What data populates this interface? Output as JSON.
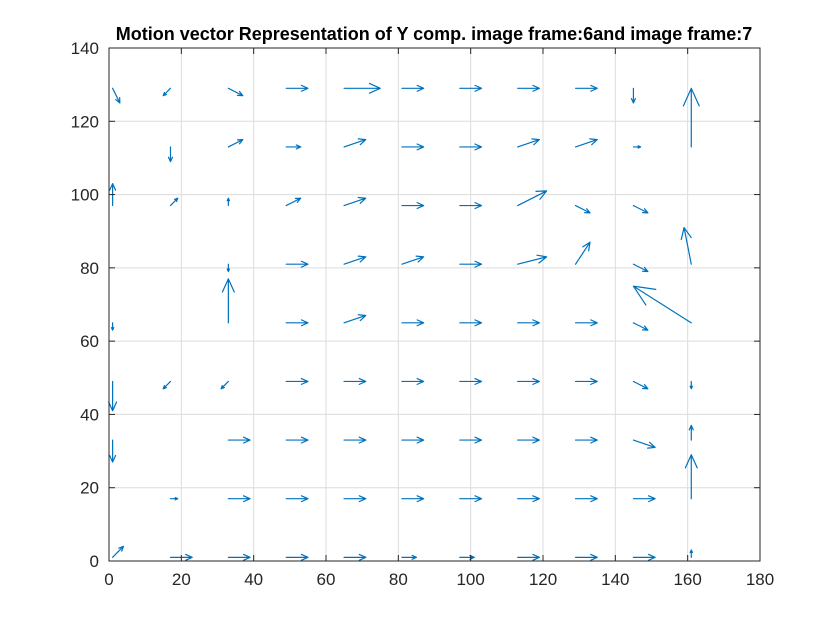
{
  "chart_data": {
    "type": "quiver",
    "title": "Motion vector Representation of Y comp. image frame:6and image frame:7",
    "xlabel": "",
    "ylabel": "",
    "xlim": [
      0,
      180
    ],
    "ylim": [
      0,
      140
    ],
    "xticks": [
      "0",
      "20",
      "40",
      "60",
      "80",
      "100",
      "120",
      "140",
      "160",
      "180"
    ],
    "yticks": [
      "0",
      "20",
      "40",
      "60",
      "80",
      "100",
      "120",
      "140"
    ],
    "grid": true,
    "color": "#0072BD",
    "vectors": [
      {
        "x": 1,
        "y": 1,
        "u": 3,
        "v": 3
      },
      {
        "x": 17,
        "y": 1,
        "u": 6,
        "v": 0
      },
      {
        "x": 33,
        "y": 1,
        "u": 6,
        "v": 0
      },
      {
        "x": 49,
        "y": 1,
        "u": 6,
        "v": 0
      },
      {
        "x": 65,
        "y": 1,
        "u": 6,
        "v": 0
      },
      {
        "x": 81,
        "y": 1,
        "u": 4,
        "v": 0
      },
      {
        "x": 97,
        "y": 1,
        "u": 4,
        "v": 0
      },
      {
        "x": 113,
        "y": 1,
        "u": 6,
        "v": 0
      },
      {
        "x": 129,
        "y": 1,
        "u": 6,
        "v": 0
      },
      {
        "x": 145,
        "y": 1,
        "u": 6,
        "v": 0
      },
      {
        "x": 161,
        "y": 1,
        "u": 0,
        "v": 2
      },
      {
        "x": 17,
        "y": 17,
        "u": 2,
        "v": 0
      },
      {
        "x": 33,
        "y": 17,
        "u": 6,
        "v": 0
      },
      {
        "x": 49,
        "y": 17,
        "u": 6,
        "v": 0
      },
      {
        "x": 65,
        "y": 17,
        "u": 6,
        "v": 0
      },
      {
        "x": 81,
        "y": 17,
        "u": 6,
        "v": 0
      },
      {
        "x": 97,
        "y": 17,
        "u": 6,
        "v": 0
      },
      {
        "x": 113,
        "y": 17,
        "u": 6,
        "v": 0
      },
      {
        "x": 129,
        "y": 17,
        "u": 6,
        "v": 0
      },
      {
        "x": 145,
        "y": 17,
        "u": 6,
        "v": 0
      },
      {
        "x": 161,
        "y": 17,
        "u": 0,
        "v": 12
      },
      {
        "x": 1,
        "y": 33,
        "u": 0,
        "v": -6
      },
      {
        "x": 33,
        "y": 33,
        "u": 6,
        "v": 0
      },
      {
        "x": 49,
        "y": 33,
        "u": 6,
        "v": 0
      },
      {
        "x": 65,
        "y": 33,
        "u": 6,
        "v": 0
      },
      {
        "x": 81,
        "y": 33,
        "u": 6,
        "v": 0
      },
      {
        "x": 97,
        "y": 33,
        "u": 6,
        "v": 0
      },
      {
        "x": 113,
        "y": 33,
        "u": 6,
        "v": 0
      },
      {
        "x": 129,
        "y": 33,
        "u": 6,
        "v": 0
      },
      {
        "x": 145,
        "y": 33,
        "u": 6,
        "v": -2
      },
      {
        "x": 161,
        "y": 33,
        "u": 0,
        "v": 4
      },
      {
        "x": 1,
        "y": 49,
        "u": 0,
        "v": -8
      },
      {
        "x": 17,
        "y": 49,
        "u": -2,
        "v": -2
      },
      {
        "x": 33,
        "y": 49,
        "u": -2,
        "v": -2
      },
      {
        "x": 49,
        "y": 49,
        "u": 6,
        "v": 0
      },
      {
        "x": 65,
        "y": 49,
        "u": 6,
        "v": 0
      },
      {
        "x": 81,
        "y": 49,
        "u": 6,
        "v": 0
      },
      {
        "x": 97,
        "y": 49,
        "u": 6,
        "v": 0
      },
      {
        "x": 113,
        "y": 49,
        "u": 6,
        "v": 0
      },
      {
        "x": 129,
        "y": 49,
        "u": 6,
        "v": 0
      },
      {
        "x": 145,
        "y": 49,
        "u": 4,
        "v": -2
      },
      {
        "x": 161,
        "y": 49,
        "u": 0,
        "v": -2
      },
      {
        "x": 1,
        "y": 65,
        "u": 0,
        "v": -2
      },
      {
        "x": 33,
        "y": 65,
        "u": 0,
        "v": 12
      },
      {
        "x": 49,
        "y": 65,
        "u": 6,
        "v": 0
      },
      {
        "x": 65,
        "y": 65,
        "u": 6,
        "v": 2
      },
      {
        "x": 81,
        "y": 65,
        "u": 6,
        "v": 0
      },
      {
        "x": 97,
        "y": 65,
        "u": 6,
        "v": 0
      },
      {
        "x": 113,
        "y": 65,
        "u": 6,
        "v": 0
      },
      {
        "x": 129,
        "y": 65,
        "u": 6,
        "v": 0
      },
      {
        "x": 145,
        "y": 65,
        "u": 4,
        "v": -2
      },
      {
        "x": 161,
        "y": 65,
        "u": -16,
        "v": 10
      },
      {
        "x": 33,
        "y": 81,
        "u": 0,
        "v": -2
      },
      {
        "x": 49,
        "y": 81,
        "u": 6,
        "v": 0
      },
      {
        "x": 65,
        "y": 81,
        "u": 6,
        "v": 2
      },
      {
        "x": 81,
        "y": 81,
        "u": 6,
        "v": 2
      },
      {
        "x": 97,
        "y": 81,
        "u": 6,
        "v": 0
      },
      {
        "x": 113,
        "y": 81,
        "u": 8,
        "v": 2
      },
      {
        "x": 129,
        "y": 81,
        "u": 4,
        "v": 6
      },
      {
        "x": 145,
        "y": 81,
        "u": 4,
        "v": -2
      },
      {
        "x": 161,
        "y": 81,
        "u": -2,
        "v": 10
      },
      {
        "x": 1,
        "y": 97,
        "u": 0,
        "v": 6
      },
      {
        "x": 17,
        "y": 97,
        "u": 2,
        "v": 2
      },
      {
        "x": 33,
        "y": 97,
        "u": 0,
        "v": 2
      },
      {
        "x": 49,
        "y": 97,
        "u": 4,
        "v": 2
      },
      {
        "x": 65,
        "y": 97,
        "u": 6,
        "v": 2
      },
      {
        "x": 81,
        "y": 97,
        "u": 6,
        "v": 0
      },
      {
        "x": 97,
        "y": 97,
        "u": 6,
        "v": 0
      },
      {
        "x": 113,
        "y": 97,
        "u": 8,
        "v": 4
      },
      {
        "x": 129,
        "y": 97,
        "u": 4,
        "v": -2
      },
      {
        "x": 145,
        "y": 97,
        "u": 4,
        "v": -2
      },
      {
        "x": 17,
        "y": 113,
        "u": 0,
        "v": -4
      },
      {
        "x": 33,
        "y": 113,
        "u": 4,
        "v": 2
      },
      {
        "x": 49,
        "y": 113,
        "u": 4,
        "v": 0
      },
      {
        "x": 65,
        "y": 113,
        "u": 6,
        "v": 2
      },
      {
        "x": 81,
        "y": 113,
        "u": 6,
        "v": 0
      },
      {
        "x": 97,
        "y": 113,
        "u": 6,
        "v": 0
      },
      {
        "x": 113,
        "y": 113,
        "u": 6,
        "v": 2
      },
      {
        "x": 129,
        "y": 113,
        "u": 6,
        "v": 2
      },
      {
        "x": 145,
        "y": 113,
        "u": 2,
        "v": 0
      },
      {
        "x": 161,
        "y": 113,
        "u": 0,
        "v": 16
      },
      {
        "x": 1,
        "y": 129,
        "u": 2,
        "v": -4
      },
      {
        "x": 17,
        "y": 129,
        "u": -2,
        "v": -2
      },
      {
        "x": 33,
        "y": 129,
        "u": 4,
        "v": -2
      },
      {
        "x": 49,
        "y": 129,
        "u": 6,
        "v": 0
      },
      {
        "x": 65,
        "y": 129,
        "u": 10,
        "v": 0
      },
      {
        "x": 81,
        "y": 129,
        "u": 6,
        "v": 0
      },
      {
        "x": 97,
        "y": 129,
        "u": 6,
        "v": 0
      },
      {
        "x": 113,
        "y": 129,
        "u": 6,
        "v": 0
      },
      {
        "x": 129,
        "y": 129,
        "u": 6,
        "v": 0
      },
      {
        "x": 145,
        "y": 129,
        "u": 0,
        "v": -4
      }
    ]
  }
}
